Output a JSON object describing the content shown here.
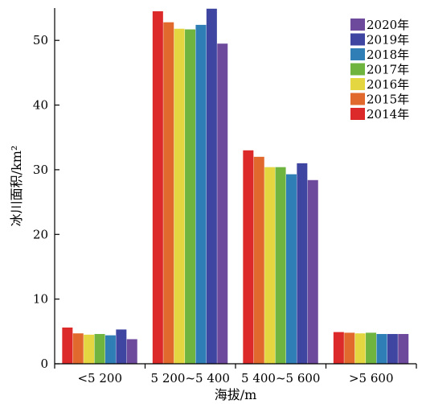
{
  "chart_data": {
    "type": "bar",
    "categories": [
      "<5 200",
      "5 200~5 400",
      "5 400~5 600",
      ">5 600"
    ],
    "series": [
      {
        "name": "2014年",
        "color": "#dc2a2a",
        "values": [
          5.6,
          54.5,
          33.0,
          4.9
        ]
      },
      {
        "name": "2015年",
        "color": "#e2692e",
        "values": [
          4.7,
          52.8,
          32.0,
          4.8
        ]
      },
      {
        "name": "2016年",
        "color": "#e3d641",
        "values": [
          4.5,
          51.8,
          30.4,
          4.7
        ]
      },
      {
        "name": "2017年",
        "color": "#6fb43f",
        "values": [
          4.6,
          51.7,
          30.4,
          4.8
        ]
      },
      {
        "name": "2018年",
        "color": "#2f7fb6",
        "values": [
          4.4,
          52.4,
          29.3,
          4.6
        ]
      },
      {
        "name": "2019年",
        "color": "#3e46a2",
        "values": [
          5.3,
          54.9,
          31.0,
          4.6
        ]
      },
      {
        "name": "2020年",
        "color": "#6e4a9c",
        "values": [
          3.8,
          49.5,
          28.4,
          4.6
        ]
      }
    ],
    "title": "",
    "xlabel": "海拔/m",
    "ylabel": "冰川面积/km²",
    "ylim": [
      0,
      55
    ],
    "yticks": [
      0,
      10,
      20,
      30,
      40,
      50
    ],
    "grid": false,
    "legend_position": "top-right"
  }
}
